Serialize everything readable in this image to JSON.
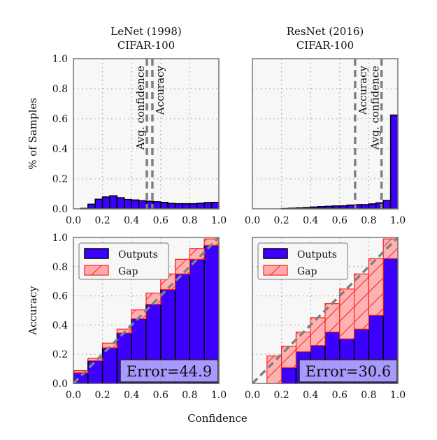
{
  "colors": {
    "outputs": "#3c00ff",
    "gap_fill": "#ffaaaa",
    "gap_edge": "#ff2020",
    "panel_bg": "#f7f7f7",
    "error_box": "#b4aaff",
    "ref_line": "#808080"
  },
  "chart_data": [
    {
      "type": "bar",
      "panel": "top-left",
      "title": [
        "LeNet (1998)",
        "CIFAR-100"
      ],
      "ylabel": "% of Samples",
      "xlim": [
        0,
        1
      ],
      "ylim": [
        0,
        1
      ],
      "xticks": [
        "0.0",
        "0.2",
        "0.4",
        "0.6",
        "0.8",
        "1.0"
      ],
      "yticks": [
        "0.0",
        "0.2",
        "0.4",
        "0.6",
        "0.8",
        "1.0"
      ],
      "grid": true,
      "bin_width": 0.05,
      "values": [
        0.0,
        0.003,
        0.031,
        0.064,
        0.079,
        0.087,
        0.074,
        0.062,
        0.059,
        0.054,
        0.051,
        0.047,
        0.043,
        0.036,
        0.034,
        0.034,
        0.034,
        0.037,
        0.042,
        0.043
      ],
      "vlines": [
        {
          "label": "Avg. confidence",
          "x": 0.505
        },
        {
          "label": "Accuracy",
          "x": 0.543
        }
      ]
    },
    {
      "type": "bar",
      "panel": "top-right",
      "title": [
        "ResNet (2016)",
        "CIFAR-100"
      ],
      "xlim": [
        0,
        1
      ],
      "ylim": [
        0,
        1
      ],
      "xticks": [
        "0.0",
        "0.2",
        "0.4",
        "0.6",
        "0.8",
        "1.0"
      ],
      "grid": true,
      "bin_width": 0.05,
      "values": [
        0,
        0,
        0,
        0,
        0.002,
        0.004,
        0.006,
        0.008,
        0.012,
        0.015,
        0.017,
        0.019,
        0.02,
        0.025,
        0.028,
        0.028,
        0.033,
        0.04,
        0.056,
        0.624
      ],
      "vlines": [
        {
          "label": "Accuracy",
          "x": 0.706
        },
        {
          "label": "Avg. confidence",
          "x": 0.888
        }
      ]
    },
    {
      "type": "bar",
      "panel": "bottom-left",
      "ylabel": "Accuracy",
      "xlim": [
        0,
        1
      ],
      "ylim": [
        0,
        1
      ],
      "xticks": [
        "0.0",
        "0.2",
        "0.4",
        "0.6",
        "0.8",
        "1.0"
      ],
      "yticks": [
        "0.0",
        "0.2",
        "0.4",
        "0.6",
        "0.8",
        "1.0"
      ],
      "grid": true,
      "bin_width": 0.1,
      "series": [
        {
          "name": "Outputs",
          "values": [
            0.073,
            0.156,
            0.244,
            0.345,
            0.443,
            0.542,
            0.643,
            0.75,
            0.85,
            0.946
          ]
        },
        {
          "name": "Gap",
          "values": [
            0.088,
            0.172,
            0.276,
            0.372,
            0.504,
            0.619,
            0.75,
            0.85,
            0.925,
            0.99
          ]
        }
      ],
      "legend": "top-left",
      "annotation": "Error=44.9"
    },
    {
      "type": "bar",
      "panel": "bottom-right",
      "xlim": [
        0,
        1
      ],
      "ylim": [
        0,
        1
      ],
      "xticks": [
        "0.0",
        "0.2",
        "0.4",
        "0.6",
        "0.8",
        "1.0"
      ],
      "grid": true,
      "bin_width": 0.1,
      "series": [
        {
          "name": "Outputs",
          "values": [
            0,
            0,
            0.108,
            0.217,
            0.26,
            0.352,
            0.305,
            0.372,
            0.467,
            0.855
          ]
        },
        {
          "name": "Gap",
          "values": [
            0,
            0.188,
            0.255,
            0.352,
            0.45,
            0.547,
            0.647,
            0.75,
            0.855,
            0.99
          ]
        }
      ],
      "legend": "top-left",
      "annotation": "Error=30.6"
    }
  ],
  "xlabel": "Confidence"
}
